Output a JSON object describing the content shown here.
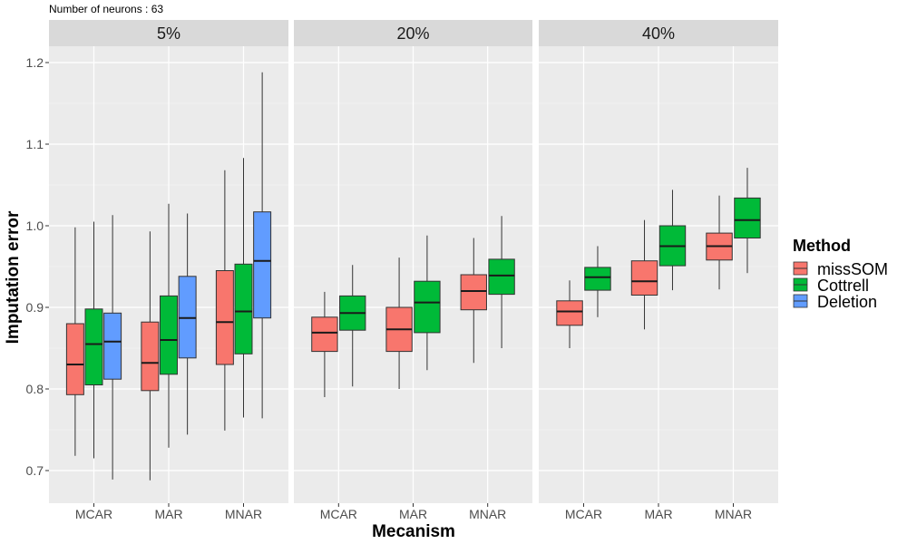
{
  "chart_data": {
    "type": "boxplot",
    "subtitle": "Number of neurons : 63",
    "xlabel": "Mecanism",
    "ylabel": "Imputation error",
    "ylim": [
      0.66,
      1.22
    ],
    "y_ticks": [
      0.7,
      0.8,
      0.9,
      1.0,
      1.1,
      1.2
    ],
    "y_tick_labels": [
      "0.7",
      "0.8",
      "0.9",
      "1.0",
      "1.1",
      "1.2"
    ],
    "categories": [
      "MCAR",
      "MAR",
      "MNAR"
    ],
    "legend": {
      "title": "Method",
      "position": "right",
      "entries": [
        {
          "name": "missSOM",
          "color": "#F8766D"
        },
        {
          "name": "Cottrell",
          "color": "#00BA38"
        },
        {
          "name": "Deletion",
          "color": "#619CFF"
        }
      ]
    },
    "grid": true,
    "panels": [
      {
        "label": "5%",
        "methods": [
          "missSOM",
          "Cottrell",
          "Deletion"
        ],
        "boxes": [
          {
            "x": "MCAR",
            "method": "missSOM",
            "min": 0.718,
            "q1": 0.793,
            "median": 0.83,
            "q3": 0.88,
            "max": 0.998
          },
          {
            "x": "MCAR",
            "method": "Cottrell",
            "min": 0.715,
            "q1": 0.805,
            "median": 0.855,
            "q3": 0.898,
            "max": 1.005
          },
          {
            "x": "MCAR",
            "method": "Deletion",
            "min": 0.689,
            "q1": 0.812,
            "median": 0.858,
            "q3": 0.893,
            "max": 1.013
          },
          {
            "x": "MAR",
            "method": "missSOM",
            "min": 0.688,
            "q1": 0.798,
            "median": 0.832,
            "q3": 0.882,
            "max": 0.993
          },
          {
            "x": "MAR",
            "method": "Cottrell",
            "min": 0.728,
            "q1": 0.818,
            "median": 0.86,
            "q3": 0.914,
            "max": 1.027
          },
          {
            "x": "MAR",
            "method": "Deletion",
            "min": 0.744,
            "q1": 0.838,
            "median": 0.887,
            "q3": 0.938,
            "max": 1.015
          },
          {
            "x": "MNAR",
            "method": "missSOM",
            "min": 0.749,
            "q1": 0.83,
            "median": 0.882,
            "q3": 0.945,
            "max": 1.068
          },
          {
            "x": "MNAR",
            "method": "Cottrell",
            "min": 0.765,
            "q1": 0.843,
            "median": 0.895,
            "q3": 0.953,
            "max": 1.083
          },
          {
            "x": "MNAR",
            "method": "Deletion",
            "min": 0.764,
            "q1": 0.887,
            "median": 0.957,
            "q3": 1.017,
            "max": 1.188
          }
        ]
      },
      {
        "label": "20%",
        "methods": [
          "missSOM",
          "Cottrell"
        ],
        "boxes": [
          {
            "x": "MCAR",
            "method": "missSOM",
            "min": 0.79,
            "q1": 0.846,
            "median": 0.869,
            "q3": 0.888,
            "max": 0.919
          },
          {
            "x": "MCAR",
            "method": "Cottrell",
            "min": 0.803,
            "q1": 0.872,
            "median": 0.893,
            "q3": 0.914,
            "max": 0.952
          },
          {
            "x": "MAR",
            "method": "missSOM",
            "min": 0.8,
            "q1": 0.846,
            "median": 0.873,
            "q3": 0.9,
            "max": 0.961
          },
          {
            "x": "MAR",
            "method": "Cottrell",
            "min": 0.823,
            "q1": 0.869,
            "median": 0.906,
            "q3": 0.932,
            "max": 0.988
          },
          {
            "x": "MNAR",
            "method": "missSOM",
            "min": 0.832,
            "q1": 0.897,
            "median": 0.92,
            "q3": 0.94,
            "max": 0.985
          },
          {
            "x": "MNAR",
            "method": "Cottrell",
            "min": 0.85,
            "q1": 0.916,
            "median": 0.939,
            "q3": 0.959,
            "max": 1.012
          }
        ]
      },
      {
        "label": "40%",
        "methods": [
          "missSOM",
          "Cottrell"
        ],
        "boxes": [
          {
            "x": "MCAR",
            "method": "missSOM",
            "min": 0.85,
            "q1": 0.878,
            "median": 0.895,
            "q3": 0.908,
            "max": 0.933
          },
          {
            "x": "MCAR",
            "method": "Cottrell",
            "min": 0.888,
            "q1": 0.921,
            "median": 0.937,
            "q3": 0.949,
            "max": 0.975
          },
          {
            "x": "MAR",
            "method": "missSOM",
            "min": 0.873,
            "q1": 0.915,
            "median": 0.932,
            "q3": 0.957,
            "max": 1.007
          },
          {
            "x": "MAR",
            "method": "Cottrell",
            "min": 0.921,
            "q1": 0.951,
            "median": 0.975,
            "q3": 1.0,
            "max": 1.044
          },
          {
            "x": "MNAR",
            "method": "missSOM",
            "min": 0.922,
            "q1": 0.958,
            "median": 0.975,
            "q3": 0.991,
            "max": 1.037
          },
          {
            "x": "MNAR",
            "method": "Cottrell",
            "min": 0.942,
            "q1": 0.985,
            "median": 1.007,
            "q3": 1.034,
            "max": 1.071
          }
        ]
      }
    ]
  }
}
